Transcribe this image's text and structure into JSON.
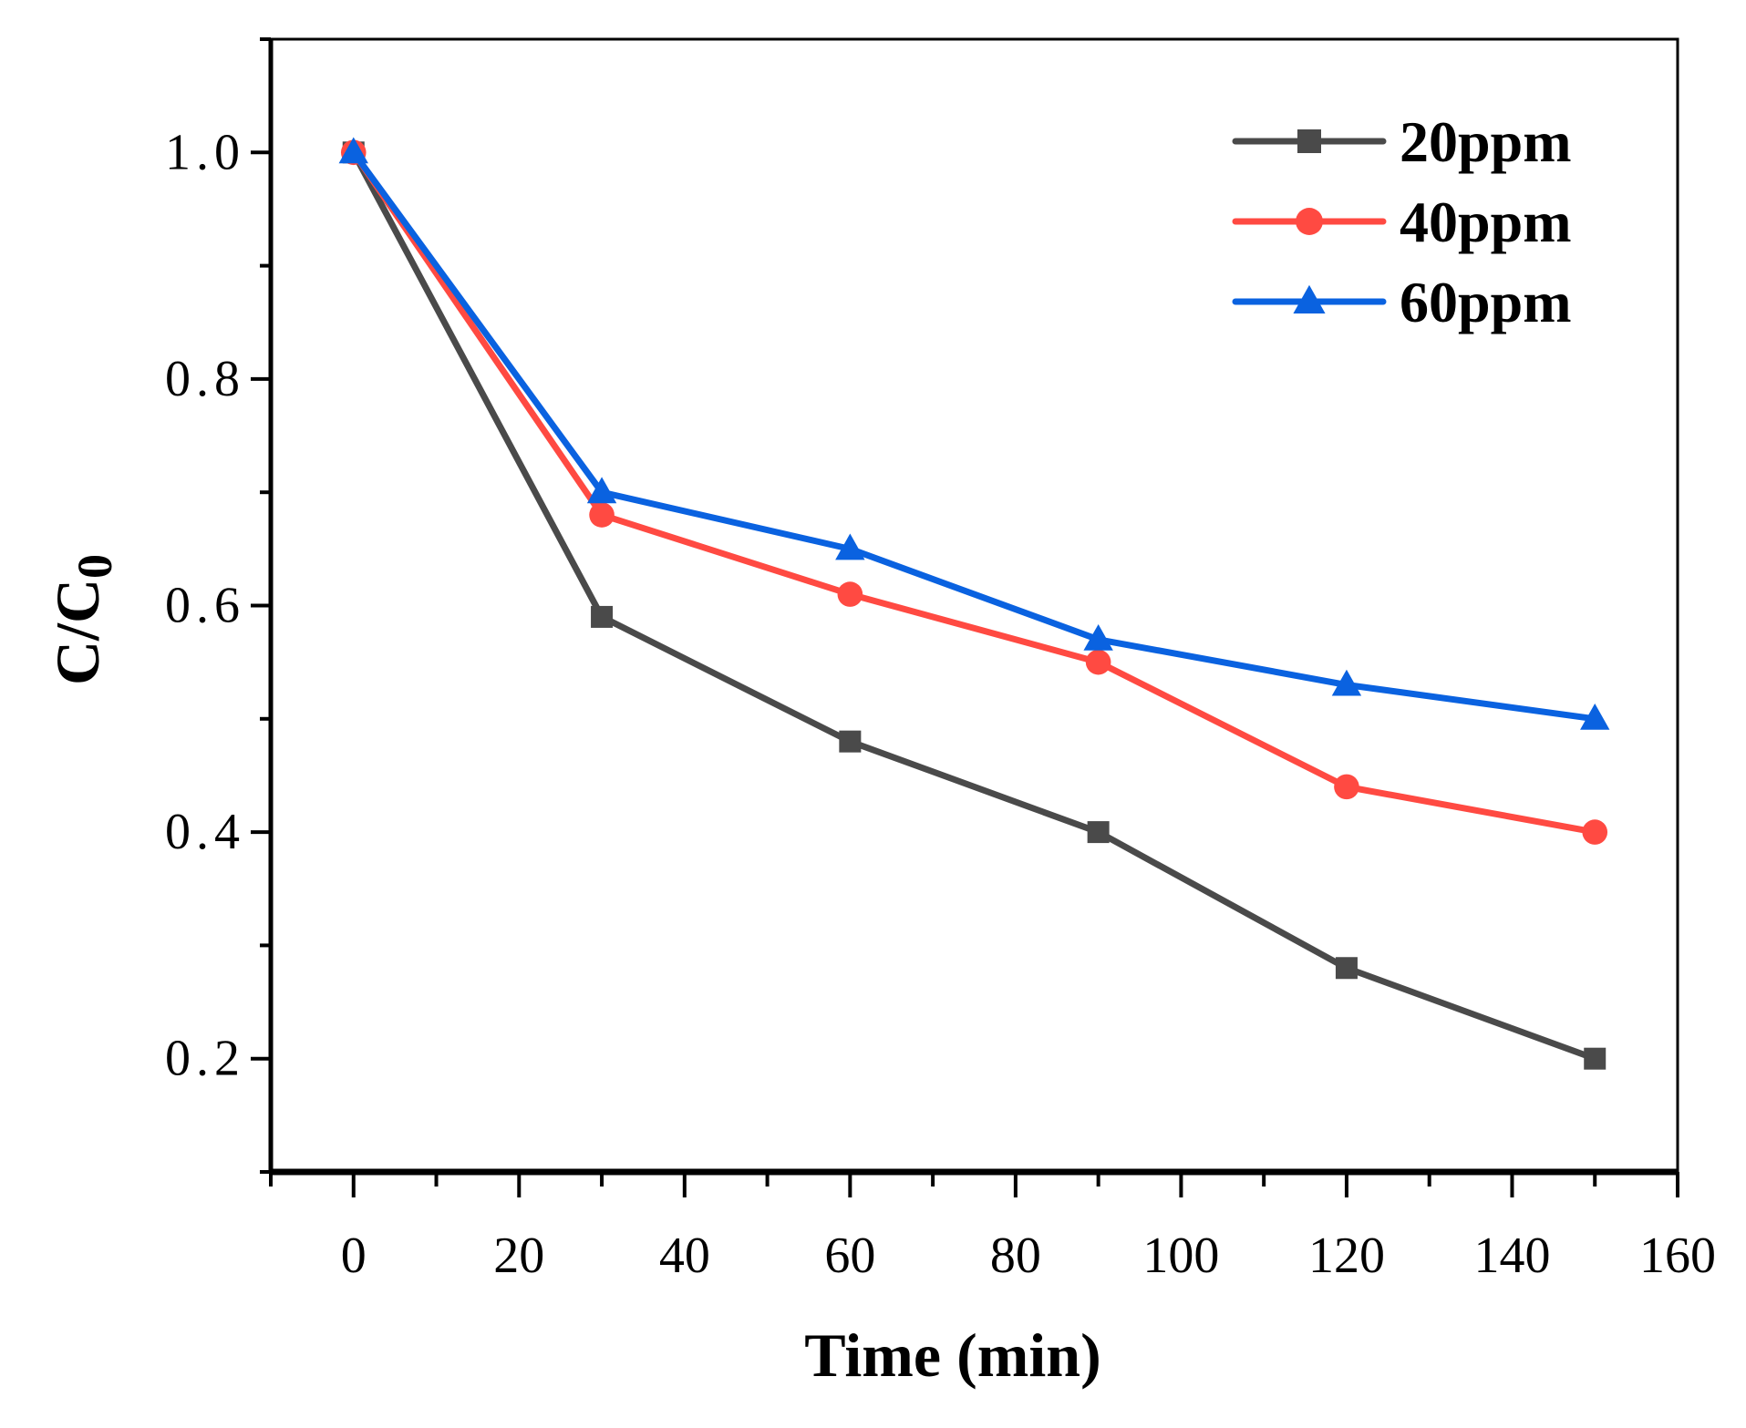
{
  "chart_data": {
    "type": "line",
    "title": "",
    "xlabel": "Time (min)",
    "ylabel": "C/C",
    "ylabel_subscript": "0",
    "xlim": [
      -10,
      160
    ],
    "ylim": [
      0.1,
      1.1
    ],
    "xticks": [
      0,
      20,
      40,
      60,
      80,
      100,
      120,
      140,
      160
    ],
    "xtick_labels": [
      "0",
      "20",
      "40",
      "60",
      "80",
      "100",
      "120",
      "140",
      "160"
    ],
    "yticks": [
      0.2,
      0.4,
      0.6,
      0.8,
      1.0
    ],
    "ytick_labels": [
      "0.2",
      "0.4",
      "0.6",
      "0.8",
      "1.0"
    ],
    "grid": false,
    "legend_position": "top-right",
    "x": [
      0,
      30,
      60,
      90,
      120,
      150
    ],
    "series": [
      {
        "name": "20ppm",
        "color": "#4a4a4a",
        "marker": "square",
        "values": [
          1.0,
          0.59,
          0.48,
          0.4,
          0.28,
          0.2
        ]
      },
      {
        "name": "40ppm",
        "color": "#ff4a42",
        "marker": "circle",
        "values": [
          1.0,
          0.68,
          0.61,
          0.55,
          0.44,
          0.4
        ]
      },
      {
        "name": "60ppm",
        "color": "#0a62e0",
        "marker": "triangle",
        "values": [
          1.0,
          0.7,
          0.65,
          0.57,
          0.53,
          0.5
        ]
      }
    ]
  }
}
